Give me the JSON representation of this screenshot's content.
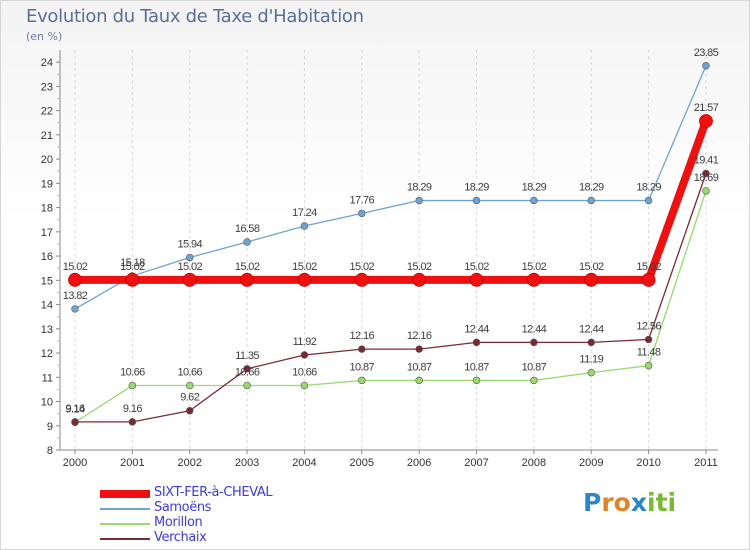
{
  "header": {
    "title": "Evolution du Taux de Taxe d'Habitation",
    "subtitle": "(en %)"
  },
  "logo": {
    "letters": [
      "P",
      "r",
      "o",
      "x",
      "i",
      "t",
      "i"
    ],
    "colors": [
      "#2a88c8",
      "#e0842a",
      "#e0842a",
      "#2a88c8",
      "#78b832",
      "#78b832",
      "#78b832"
    ]
  },
  "chart_data": {
    "type": "line",
    "x": [
      "2000",
      "2001",
      "2002",
      "2003",
      "2004",
      "2005",
      "2006",
      "2007",
      "2008",
      "2009",
      "2010",
      "2011"
    ],
    "ylim": [
      8,
      24.5
    ],
    "yticks": [
      8,
      9,
      10,
      11,
      12,
      13,
      14,
      15,
      16,
      17,
      18,
      19,
      20,
      21,
      22,
      23,
      24
    ],
    "grid": "vertical",
    "legend_position": "bottom-left",
    "series": [
      {
        "name": "SIXT-FER-à-CHEVAL",
        "color": "#ee1111",
        "values": [
          15.02,
          15.02,
          15.02,
          15.02,
          15.02,
          15.02,
          15.02,
          15.02,
          15.02,
          15.02,
          15.02,
          21.57
        ],
        "labels": [
          "15.02",
          "15.02",
          "15.02",
          "15.02",
          "15.02",
          "15.02",
          "15.02",
          "15.02",
          "15.02",
          "15.02",
          "15.02",
          "21.57"
        ]
      },
      {
        "name": "Samoëns",
        "color": "#6fa4d2",
        "values": [
          13.82,
          15.18,
          15.94,
          16.58,
          17.24,
          17.76,
          18.29,
          18.29,
          18.29,
          18.29,
          18.29,
          23.85
        ],
        "labels": [
          "13.82",
          "15.18",
          "15.94",
          "16.58",
          "17.24",
          "17.76",
          "18.29",
          "18.29",
          "18.29",
          "18.29",
          "18.29",
          "23.85"
        ]
      },
      {
        "name": "Morillon",
        "color": "#99d96d",
        "values": [
          9.14,
          10.66,
          10.66,
          10.66,
          10.66,
          10.87,
          10.87,
          10.87,
          10.87,
          11.19,
          11.48,
          18.69
        ],
        "labels": [
          "9.14",
          "10.66",
          "10.66",
          "10.66",
          "10.66",
          "10.87",
          "10.87",
          "10.87",
          "10.87",
          "11.19",
          "11.48",
          "18.69"
        ]
      },
      {
        "name": "Verchaix",
        "color": "#7a2a34",
        "values": [
          9.16,
          9.16,
          9.62,
          11.35,
          11.92,
          12.16,
          12.16,
          12.44,
          12.44,
          12.44,
          12.56,
          19.41
        ],
        "labels": [
          "9.16",
          "9.16",
          "9.62",
          "11.35",
          "11.92",
          "12.16",
          "12.16",
          "12.44",
          "12.44",
          "12.44",
          "12.56",
          "19.41"
        ]
      }
    ]
  }
}
